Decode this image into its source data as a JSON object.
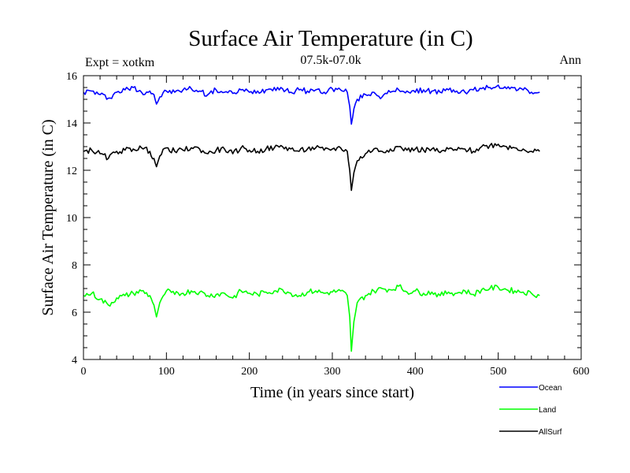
{
  "chart_data": {
    "type": "line",
    "title": "Surface Air Temperature (in C)",
    "subtitle_left": "Expt = xotkm",
    "subtitle_center": "07.5k-07.0k",
    "subtitle_right": "Ann",
    "xlabel": "Time (in years since start)",
    "ylabel": "Surface Air Temperature (in C)",
    "xlim": [
      0,
      600
    ],
    "ylim": [
      4,
      16
    ],
    "xticks": [
      "0",
      "100",
      "200",
      "300",
      "400",
      "500",
      "600"
    ],
    "yticks": [
      "4",
      "6",
      "8",
      "10",
      "12",
      "14",
      "16"
    ],
    "grid": false,
    "legend_position": "bottom-right",
    "series": [
      {
        "name": "Ocean",
        "color": "#0000ff",
        "x": [
          0,
          10,
          20,
          30,
          40,
          50,
          60,
          70,
          80,
          85,
          88,
          92,
          100,
          110,
          120,
          130,
          140,
          150,
          160,
          170,
          180,
          190,
          200,
          210,
          220,
          230,
          240,
          250,
          260,
          270,
          280,
          290,
          300,
          310,
          318,
          321,
          323,
          326,
          330,
          340,
          350,
          360,
          370,
          380,
          390,
          400,
          410,
          420,
          430,
          440,
          450,
          460,
          470,
          480,
          490,
          500,
          510,
          520,
          530,
          540,
          550
        ],
        "y": [
          15.3,
          15.35,
          15.2,
          15.05,
          15.3,
          15.4,
          15.5,
          15.3,
          15.35,
          15.2,
          14.8,
          15.1,
          15.35,
          15.3,
          15.4,
          15.45,
          15.35,
          15.2,
          15.4,
          15.3,
          15.25,
          15.4,
          15.3,
          15.35,
          15.4,
          15.5,
          15.45,
          15.3,
          15.4,
          15.35,
          15.4,
          15.3,
          15.45,
          15.4,
          15.3,
          14.7,
          13.95,
          14.6,
          15.0,
          15.2,
          15.3,
          15.1,
          15.3,
          15.4,
          15.35,
          15.3,
          15.4,
          15.35,
          15.3,
          15.4,
          15.35,
          15.3,
          15.4,
          15.45,
          15.5,
          15.6,
          15.45,
          15.5,
          15.4,
          15.3,
          15.3
        ]
      },
      {
        "name": "Land",
        "color": "#00ff00",
        "x": [
          0,
          10,
          20,
          30,
          40,
          50,
          60,
          70,
          80,
          85,
          88,
          92,
          100,
          110,
          120,
          130,
          140,
          150,
          160,
          170,
          180,
          190,
          200,
          210,
          220,
          230,
          240,
          250,
          260,
          270,
          280,
          290,
          300,
          310,
          318,
          321,
          323,
          326,
          330,
          340,
          350,
          360,
          370,
          380,
          390,
          400,
          410,
          420,
          430,
          440,
          450,
          460,
          470,
          480,
          490,
          500,
          510,
          520,
          530,
          540,
          550
        ],
        "y": [
          6.7,
          6.8,
          6.55,
          6.3,
          6.6,
          6.7,
          6.8,
          6.9,
          6.7,
          6.3,
          5.8,
          6.4,
          6.9,
          6.75,
          6.8,
          6.9,
          6.85,
          6.7,
          6.75,
          6.8,
          6.6,
          6.9,
          6.8,
          6.75,
          6.85,
          6.9,
          6.95,
          6.8,
          6.7,
          6.85,
          6.9,
          6.8,
          6.85,
          6.9,
          6.7,
          5.8,
          4.35,
          5.6,
          6.4,
          6.7,
          6.9,
          7.0,
          6.95,
          7.1,
          6.85,
          6.9,
          6.8,
          6.85,
          6.7,
          6.85,
          6.8,
          6.9,
          6.75,
          6.95,
          7.0,
          7.05,
          6.95,
          6.9,
          6.85,
          6.8,
          6.7
        ]
      },
      {
        "name": "AllSurf",
        "color": "#000000",
        "x": [
          0,
          10,
          20,
          30,
          40,
          50,
          60,
          70,
          80,
          85,
          88,
          92,
          100,
          110,
          120,
          130,
          140,
          150,
          160,
          170,
          180,
          190,
          200,
          210,
          220,
          230,
          240,
          250,
          260,
          270,
          280,
          290,
          300,
          310,
          318,
          321,
          323,
          326,
          330,
          340,
          350,
          360,
          370,
          380,
          390,
          400,
          410,
          420,
          430,
          440,
          450,
          460,
          470,
          480,
          490,
          500,
          510,
          520,
          530,
          540,
          550
        ],
        "y": [
          12.8,
          12.85,
          12.7,
          12.5,
          12.8,
          12.85,
          12.9,
          12.95,
          12.8,
          12.5,
          12.15,
          12.6,
          12.95,
          12.8,
          12.85,
          12.95,
          12.9,
          12.7,
          12.85,
          12.9,
          12.7,
          12.95,
          12.85,
          12.8,
          12.9,
          12.95,
          13.0,
          12.9,
          12.8,
          12.9,
          12.95,
          12.85,
          12.9,
          12.95,
          12.8,
          12.0,
          11.15,
          11.9,
          12.4,
          12.7,
          12.9,
          12.8,
          12.9,
          13.0,
          12.85,
          12.9,
          12.85,
          12.9,
          12.75,
          12.9,
          12.85,
          12.9,
          12.8,
          13.0,
          13.05,
          13.1,
          13.0,
          12.95,
          12.9,
          12.8,
          12.8
        ]
      }
    ]
  }
}
